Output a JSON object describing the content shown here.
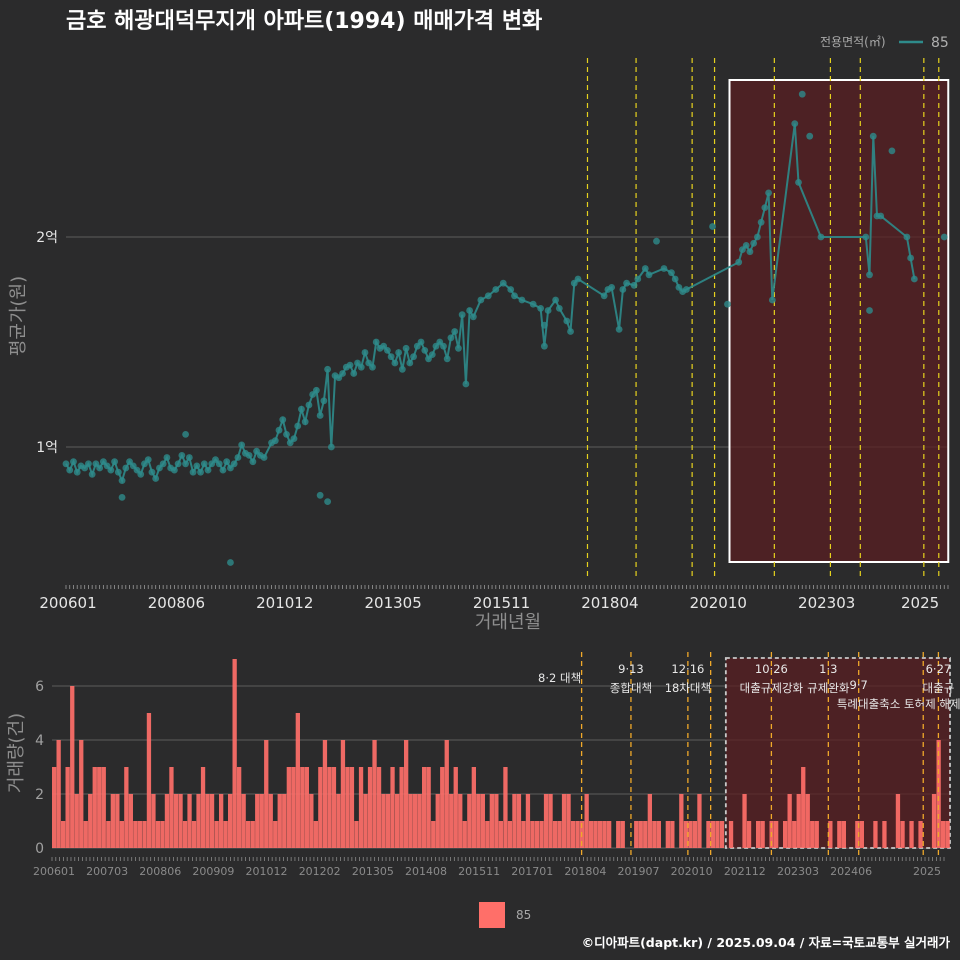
{
  "title": "금호 해광대덕무지개 아파트(1994) 매매가격 변화",
  "footer": "©디아파트(dapt.kr) / 2025.09.04 / 자료=국토교통부 실거래가",
  "colors": {
    "background": "#2b2b2c",
    "price_series": "#2e8b8b",
    "volume_bars": "#ff6f69",
    "policy_lines": "#e6d21e",
    "highlight_fill": "#5a1f22",
    "highlight_border": "#ffffff",
    "grid": "#5c5c5c"
  },
  "chart_data": [
    {
      "type": "line",
      "panel": "price",
      "xlabel": "거래년월",
      "ylabel": "평균가(원)",
      "x_tick_labels": [
        "200601",
        "200806",
        "201012",
        "201305",
        "201511",
        "201804",
        "202010",
        "202303",
        "2025"
      ],
      "y_tick_labels": [
        "1억",
        "2억"
      ],
      "y_tick_values": [
        100000000,
        200000000
      ],
      "ylim": [
        60000000,
        260000000
      ],
      "legend_title": "전용면적(㎡)",
      "legend_position": "top-right",
      "series": [
        {
          "name": "85",
          "points": [
            [
              "2006-01",
              92000000
            ],
            [
              "2006-02",
              89000000
            ],
            [
              "2006-03",
              93000000
            ],
            [
              "2006-04",
              88000000
            ],
            [
              "2006-05",
              91000000
            ],
            [
              "2006-06",
              90000000
            ],
            [
              "2006-07",
              92000000
            ],
            [
              "2006-08",
              87000000
            ],
            [
              "2006-09",
              92000000
            ],
            [
              "2006-10",
              90000000
            ],
            [
              "2006-11",
              93000000
            ],
            [
              "2006-12",
              91000000
            ],
            [
              "2007-01",
              89000000
            ],
            [
              "2007-02",
              93000000
            ],
            [
              "2007-03",
              88000000
            ],
            [
              "2007-04",
              84000000
            ],
            [
              "2007-05",
              90000000
            ],
            [
              "2007-06",
              93000000
            ],
            [
              "2007-07",
              91000000
            ],
            [
              "2007-08",
              89000000
            ],
            [
              "2007-09",
              87000000
            ],
            [
              "2007-10",
              92000000
            ],
            [
              "2007-11",
              94000000
            ],
            [
              "2007-12",
              88000000
            ],
            [
              "2008-01",
              85000000
            ],
            [
              "2008-02",
              90000000
            ],
            [
              "2008-03",
              92000000
            ],
            [
              "2008-04",
              95000000
            ],
            [
              "2008-05",
              90000000
            ],
            [
              "2008-06",
              89000000
            ],
            [
              "2008-07",
              92000000
            ],
            [
              "2008-08",
              96000000
            ],
            [
              "2008-09",
              92000000
            ],
            [
              "2008-10",
              95000000
            ],
            [
              "2008-11",
              88000000
            ],
            [
              "2008-12",
              91000000
            ],
            [
              "2009-01",
              88000000
            ],
            [
              "2009-02",
              92000000
            ],
            [
              "2009-03",
              89000000
            ],
            [
              "2009-04",
              92000000
            ],
            [
              "2009-05",
              94000000
            ],
            [
              "2009-06",
              92000000
            ],
            [
              "2009-07",
              89000000
            ],
            [
              "2009-08",
              93000000
            ],
            [
              "2009-09",
              90000000
            ],
            [
              "2009-10",
              92000000
            ],
            [
              "2009-11",
              95000000
            ],
            [
              "2009-12",
              101000000
            ],
            [
              "2010-01",
              97000000
            ],
            [
              "2010-02",
              96000000
            ],
            [
              "2010-03",
              93000000
            ],
            [
              "2010-04",
              98000000
            ],
            [
              "2010-05",
              96000000
            ],
            [
              "2010-06",
              95000000
            ],
            [
              "2010-08",
              102000000
            ],
            [
              "2010-09",
              103000000
            ],
            [
              "2010-10",
              108000000
            ],
            [
              "2010-11",
              113000000
            ],
            [
              "2010-12",
              106000000
            ],
            [
              "2011-01",
              102000000
            ],
            [
              "2011-02",
              104000000
            ],
            [
              "2011-03",
              110000000
            ],
            [
              "2011-04",
              118000000
            ],
            [
              "2011-05",
              112000000
            ],
            [
              "2011-06",
              120000000
            ],
            [
              "2011-07",
              125000000
            ],
            [
              "2011-08",
              127000000
            ],
            [
              "2011-09",
              115000000
            ],
            [
              "2011-10",
              122000000
            ],
            [
              "2011-11",
              137000000
            ],
            [
              "2011-12",
              100000000
            ],
            [
              "2012-01",
              134000000
            ],
            [
              "2012-02",
              133000000
            ],
            [
              "2012-03",
              135000000
            ],
            [
              "2012-04",
              138000000
            ],
            [
              "2012-05",
              139000000
            ],
            [
              "2012-06",
              135000000
            ],
            [
              "2012-07",
              140000000
            ],
            [
              "2012-08",
              138000000
            ],
            [
              "2012-09",
              145000000
            ],
            [
              "2012-10",
              140000000
            ],
            [
              "2012-11",
              138000000
            ],
            [
              "2012-12",
              150000000
            ],
            [
              "2013-01",
              147000000
            ],
            [
              "2013-02",
              148000000
            ],
            [
              "2013-03",
              146000000
            ],
            [
              "2013-04",
              143000000
            ],
            [
              "2013-05",
              140000000
            ],
            [
              "2013-06",
              145000000
            ],
            [
              "2013-07",
              137000000
            ],
            [
              "2013-08",
              147000000
            ],
            [
              "2013-09",
              140000000
            ],
            [
              "2013-10",
              143000000
            ],
            [
              "2013-11",
              148000000
            ],
            [
              "2013-12",
              150000000
            ],
            [
              "2014-01",
              146000000
            ],
            [
              "2014-02",
              142000000
            ],
            [
              "2014-03",
              144000000
            ],
            [
              "2014-04",
              148000000
            ],
            [
              "2014-05",
              150000000
            ],
            [
              "2014-06",
              148000000
            ],
            [
              "2014-07",
              142000000
            ],
            [
              "2014-08",
              152000000
            ],
            [
              "2014-09",
              155000000
            ],
            [
              "2014-10",
              147000000
            ],
            [
              "2014-11",
              163000000
            ],
            [
              "2014-12",
              130000000
            ],
            [
              "2015-01",
              165000000
            ],
            [
              "2015-02",
              162000000
            ],
            [
              "2015-04",
              170000000
            ],
            [
              "2015-06",
              172000000
            ],
            [
              "2015-08",
              175000000
            ],
            [
              "2015-10",
              178000000
            ],
            [
              "2015-12",
              175000000
            ],
            [
              "2016-01",
              172000000
            ],
            [
              "2016-03",
              170000000
            ],
            [
              "2016-06",
              168000000
            ],
            [
              "2016-08",
              166000000
            ],
            [
              "2016-09",
              148000000
            ],
            [
              "2016-10",
              165000000
            ],
            [
              "2016-12",
              170000000
            ],
            [
              "2017-01",
              166000000
            ],
            [
              "2017-03",
              160000000
            ],
            [
              "2017-04",
              155000000
            ],
            [
              "2017-05",
              178000000
            ],
            [
              "2017-06",
              180000000
            ],
            [
              "2018-01",
              172000000
            ],
            [
              "2018-02",
              175000000
            ],
            [
              "2018-03",
              176000000
            ],
            [
              "2018-05",
              156000000
            ],
            [
              "2018-06",
              175000000
            ],
            [
              "2018-07",
              178000000
            ],
            [
              "2018-09",
              177000000
            ],
            [
              "2018-10",
              180000000
            ],
            [
              "2018-12",
              185000000
            ],
            [
              "2019-01",
              182000000
            ],
            [
              "2019-05",
              185000000
            ],
            [
              "2019-07",
              183000000
            ],
            [
              "2019-08",
              180000000
            ],
            [
              "2019-09",
              176000000
            ],
            [
              "2019-10",
              174000000
            ],
            [
              "2019-11",
              175000000
            ],
            [
              "2021-01",
              188000000
            ],
            [
              "2021-02",
              194000000
            ],
            [
              "2021-03",
              196000000
            ],
            [
              "2021-04",
              193000000
            ],
            [
              "2021-05",
              197000000
            ],
            [
              "2021-06",
              200000000
            ],
            [
              "2021-07",
              207000000
            ],
            [
              "2021-08",
              214000000
            ],
            [
              "2021-09",
              221000000
            ],
            [
              "2021-10",
              170000000
            ],
            [
              "2022-04",
              254000000
            ],
            [
              "2022-05",
              226000000
            ],
            [
              "2022-11",
              200000000
            ],
            [
              "2023-11",
              200000000
            ],
            [
              "2023-12",
              182000000
            ],
            [
              "2024-01",
              248000000
            ],
            [
              "2024-02",
              210000000
            ],
            [
              "2024-03",
              210000000
            ],
            [
              "2024-10",
              200000000
            ],
            [
              "2024-11",
              190000000
            ],
            [
              "2024-12",
              180000000
            ]
          ]
        }
      ],
      "outliers": [
        [
          "2007-04",
          76000000
        ],
        [
          "2008-09",
          106000000
        ],
        [
          "2009-09",
          45000000
        ],
        [
          "2011-09",
          77000000
        ],
        [
          "2011-11",
          74000000
        ],
        [
          "2016-09",
          158000000
        ],
        [
          "2019-03",
          198000000
        ],
        [
          "2020-06",
          205000000
        ],
        [
          "2020-10",
          168000000
        ],
        [
          "2022-06",
          268000000
        ],
        [
          "2022-08",
          248000000
        ],
        [
          "2023-12",
          165000000
        ],
        [
          "2024-06",
          241000000
        ],
        [
          "2025-08",
          200000000
        ]
      ],
      "highlight_box": {
        "from": "2020-10",
        "to": "2025-08"
      }
    },
    {
      "type": "bar",
      "panel": "volume",
      "xlabel": "",
      "ylabel": "거래량(건)",
      "y_tick_labels": [
        "0",
        "2",
        "4",
        "6"
      ],
      "ylim": [
        0,
        7
      ],
      "x_tick_labels": [
        "200601",
        "200703",
        "200806",
        "200909",
        "201012",
        "201202",
        "201305",
        "201408",
        "201511",
        "201701",
        "201804",
        "201907",
        "202010",
        "202112",
        "202303",
        "202406",
        "2025"
      ],
      "legend_position": "bottom",
      "series": [
        {
          "name": "85",
          "values": [
            3,
            4,
            1,
            3,
            6,
            2,
            4,
            1,
            2,
            3,
            3,
            3,
            1,
            2,
            2,
            1,
            3,
            2,
            1,
            1,
            1,
            5,
            2,
            1,
            1,
            2,
            3,
            2,
            2,
            1,
            2,
            1,
            2,
            3,
            2,
            2,
            1,
            2,
            1,
            2,
            7,
            3,
            2,
            1,
            1,
            2,
            2,
            4,
            2,
            1,
            2,
            2,
            3,
            3,
            5,
            3,
            3,
            2,
            1,
            3,
            4,
            3,
            3,
            2,
            4,
            3,
            3,
            1,
            3,
            2,
            3,
            4,
            3,
            2,
            2,
            3,
            2,
            3,
            4,
            2,
            2,
            2,
            3,
            3,
            1,
            2,
            3,
            4,
            2,
            3,
            2,
            1,
            2,
            3,
            2,
            2,
            1,
            2,
            2,
            1,
            3,
            1,
            2,
            2,
            1,
            2,
            1,
            1,
            1,
            2,
            2,
            1,
            1,
            2,
            2,
            1,
            1,
            1,
            2,
            1,
            1,
            1,
            1,
            1,
            0,
            1,
            1,
            0,
            0,
            1,
            1,
            1,
            2,
            1,
            1,
            0,
            1,
            1,
            0,
            2,
            1,
            1,
            1,
            2,
            0,
            1,
            1,
            1,
            1,
            0,
            1,
            0,
            0,
            2,
            1,
            0,
            1,
            1,
            0,
            1,
            1,
            0,
            1,
            2,
            1,
            2,
            3,
            2,
            1,
            1,
            0,
            0,
            1,
            0,
            1,
            1,
            0,
            0,
            1,
            1,
            0,
            0,
            1,
            0,
            1,
            0,
            0,
            2,
            1,
            0,
            1,
            0,
            1,
            0,
            0,
            2,
            4,
            1,
            1
          ]
        }
      ],
      "policy_annotations": [
        {
          "date": "2017-08",
          "label": "8·2 대책"
        },
        {
          "date": "2018-09",
          "label": "9·13",
          "label2": "종합대책"
        },
        {
          "date": "2019-12",
          "label": "12·16",
          "label2": "18차대책"
        },
        {
          "date": "2020-06",
          "label": ""
        },
        {
          "date": "2021-10",
          "label": "10·26",
          "label2": "대출규제강화"
        },
        {
          "date": "2023-01",
          "label": "1·3",
          "label2": "규제완화"
        },
        {
          "date": "2023-09",
          "label": "",
          "label2": "9·7",
          "label3": "특례대출축소 토허제 해제"
        },
        {
          "date": "2025-02",
          "label": ""
        },
        {
          "date": "2025-06",
          "label": "6·27",
          "label2": "대출규"
        }
      ],
      "highlight_box": {
        "from": "2020-10",
        "to": "2025-08"
      }
    }
  ]
}
